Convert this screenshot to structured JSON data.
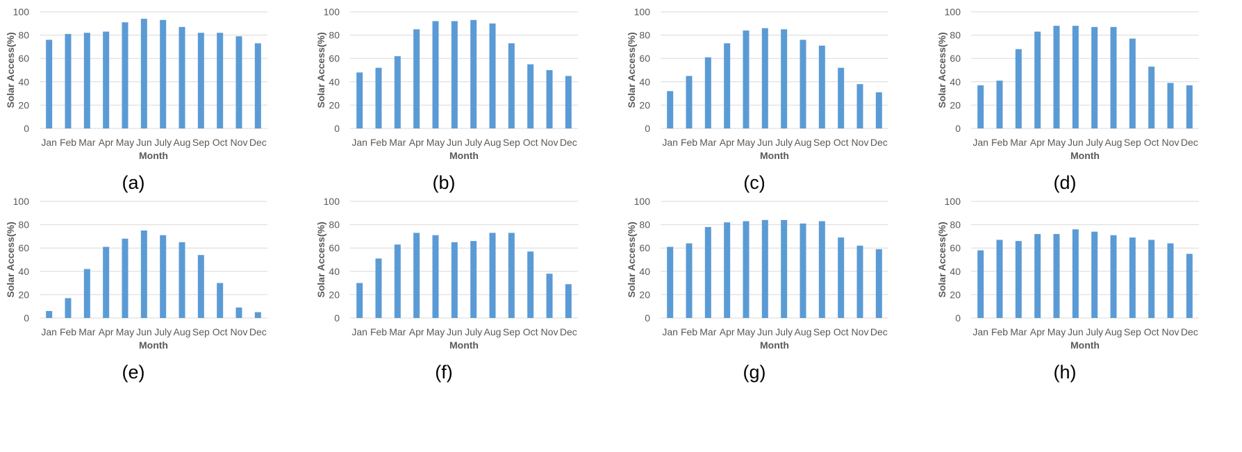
{
  "colors": {
    "bar": "#5b9bd5",
    "grid": "#d9d9d9",
    "text": "#595959"
  },
  "chart_data": [
    {
      "type": "bar",
      "caption": "(a)",
      "xlabel": "Month",
      "ylabel": "Solar Access(%)",
      "ylim": [
        0,
        100
      ],
      "yticks": [
        0,
        20,
        40,
        60,
        80,
        100
      ],
      "grid": true,
      "categories": [
        "Jan",
        "Feb",
        "Mar",
        "Apr",
        "May",
        "Jun",
        "July",
        "Aug",
        "Sep",
        "Oct",
        "Nov",
        "Dec"
      ],
      "values": [
        76,
        81,
        82,
        83,
        91,
        94,
        93,
        87,
        82,
        82,
        79,
        73
      ]
    },
    {
      "type": "bar",
      "caption": "(b)",
      "xlabel": "Month",
      "ylabel": "Solar Access(%)",
      "ylim": [
        0,
        100
      ],
      "yticks": [
        0,
        20,
        40,
        60,
        80,
        100
      ],
      "grid": true,
      "categories": [
        "Jan",
        "Feb",
        "Mar",
        "Apr",
        "May",
        "Jun",
        "July",
        "Aug",
        "Sep",
        "Oct",
        "Nov",
        "Dec"
      ],
      "values": [
        48,
        52,
        62,
        85,
        92,
        92,
        93,
        90,
        73,
        55,
        50,
        45
      ]
    },
    {
      "type": "bar",
      "caption": "(c)",
      "xlabel": "Month",
      "ylabel": "Solar Access(%)",
      "ylim": [
        0,
        100
      ],
      "yticks": [
        0,
        20,
        40,
        60,
        80,
        100
      ],
      "grid": true,
      "categories": [
        "Jan",
        "Feb",
        "Mar",
        "Apr",
        "May",
        "Jun",
        "July",
        "Aug",
        "Sep",
        "Oct",
        "Nov",
        "Dec"
      ],
      "values": [
        32,
        45,
        61,
        73,
        84,
        86,
        85,
        76,
        71,
        52,
        38,
        31
      ]
    },
    {
      "type": "bar",
      "caption": "(d)",
      "xlabel": "Month",
      "ylabel": "Solar Access(%)",
      "ylim": [
        0,
        100
      ],
      "yticks": [
        0,
        20,
        40,
        60,
        80,
        100
      ],
      "grid": true,
      "categories": [
        "Jan",
        "Feb",
        "Mar",
        "Apr",
        "May",
        "Jun",
        "July",
        "Aug",
        "Sep",
        "Oct",
        "Nov",
        "Dec"
      ],
      "values": [
        37,
        41,
        68,
        83,
        88,
        88,
        87,
        87,
        77,
        53,
        39,
        37
      ]
    },
    {
      "type": "bar",
      "caption": "(e)",
      "xlabel": "Month",
      "ylabel": "Solar Access(%)",
      "ylim": [
        0,
        100
      ],
      "yticks": [
        0,
        20,
        40,
        60,
        80,
        100
      ],
      "grid": true,
      "categories": [
        "Jan",
        "Feb",
        "Mar",
        "Apr",
        "May",
        "Jun",
        "July",
        "Aug",
        "Sep",
        "Oct",
        "Nov",
        "Dec"
      ],
      "values": [
        6,
        17,
        42,
        61,
        68,
        75,
        71,
        65,
        54,
        30,
        9,
        5
      ]
    },
    {
      "type": "bar",
      "caption": "(f)",
      "xlabel": "Month",
      "ylabel": "Solar Access(%)",
      "ylim": [
        0,
        100
      ],
      "yticks": [
        0,
        20,
        40,
        60,
        80,
        100
      ],
      "grid": true,
      "categories": [
        "Jan",
        "Feb",
        "Mar",
        "Apr",
        "May",
        "Jun",
        "July",
        "Aug",
        "Sep",
        "Oct",
        "Nov",
        "Dec"
      ],
      "values": [
        30,
        51,
        63,
        73,
        71,
        65,
        66,
        73,
        73,
        57,
        38,
        29
      ]
    },
    {
      "type": "bar",
      "caption": "(g)",
      "xlabel": "Month",
      "ylabel": "Solar Access(%)",
      "ylim": [
        0,
        100
      ],
      "yticks": [
        0,
        20,
        40,
        60,
        80,
        100
      ],
      "grid": true,
      "categories": [
        "Jan",
        "Feb",
        "Mar",
        "Apr",
        "May",
        "Jun",
        "July",
        "Aug",
        "Sep",
        "Oct",
        "Nov",
        "Dec"
      ],
      "values": [
        61,
        64,
        78,
        82,
        83,
        84,
        84,
        81,
        83,
        69,
        62,
        59
      ]
    },
    {
      "type": "bar",
      "caption": "(h)",
      "xlabel": "Month",
      "ylabel": "Solar Access(%)",
      "ylim": [
        0,
        100
      ],
      "yticks": [
        0,
        20,
        40,
        60,
        80,
        100
      ],
      "grid": true,
      "categories": [
        "Jan",
        "Feb",
        "Mar",
        "Apr",
        "May",
        "Jun",
        "July",
        "Aug",
        "Sep",
        "Oct",
        "Nov",
        "Dec"
      ],
      "values": [
        58,
        67,
        66,
        72,
        72,
        76,
        74,
        71,
        69,
        67,
        64,
        55
      ]
    }
  ]
}
